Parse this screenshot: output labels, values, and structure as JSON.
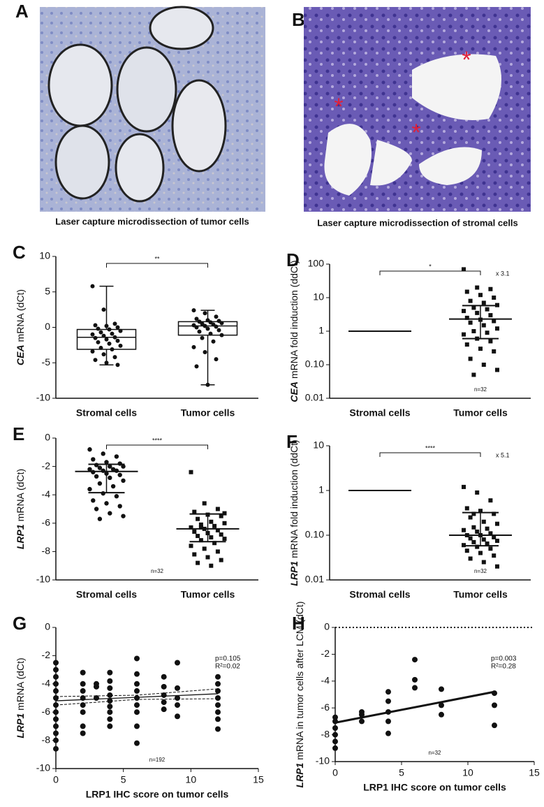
{
  "images": [
    {
      "label": "A",
      "caption": "Laser capture microdissection of tumor cells"
    },
    {
      "label": "B",
      "caption": "Laser capture microdissection of stromal cells"
    }
  ],
  "chart_data": [
    {
      "type": "box",
      "label": "C",
      "ylabel": {
        "gene": "CEA",
        "text": "mRNA (dCt)"
      },
      "categories": [
        "Stromal cells",
        "Tumor cells"
      ],
      "min": [
        -5.3,
        -8.1
      ],
      "q1": [
        -3.1,
        -1.1
      ],
      "median": [
        -1.4,
        0.2
      ],
      "q3": [
        -0.3,
        0.8
      ],
      "max": [
        5.8,
        2.4
      ],
      "points": [
        [
          5.8,
          2.5,
          0.5,
          0.3,
          0.2,
          0,
          -0.2,
          -0.3,
          -0.5,
          -0.7,
          -0.9,
          -1.0,
          -1.2,
          -1.4,
          -1.5,
          -1.7,
          -1.9,
          -2.1,
          -2.3,
          -2.6,
          -2.9,
          -3.1,
          -3.4,
          -3.8,
          -4.2,
          -4.6,
          -5.0,
          -5.3
        ],
        [
          2.4,
          2.0,
          1.5,
          1.2,
          1.0,
          0.9,
          0.8,
          0.7,
          0.6,
          0.5,
          0.4,
          0.3,
          0.2,
          0.1,
          0,
          -0.2,
          -0.4,
          -0.6,
          -0.9,
          -1.1,
          -1.5,
          -2.0,
          -2.8,
          -3.5,
          -4.5,
          -5.5,
          -8.1
        ]
      ],
      "ylim": [
        -10,
        10
      ],
      "yticks": [
        -10,
        -5,
        0,
        5,
        10
      ],
      "significance": "**"
    },
    {
      "type": "dot",
      "label": "D",
      "ylabel": {
        "gene": "CEA",
        "text": "mRNA fold induction (ddCt)"
      },
      "log": true,
      "categories": [
        "Stromal cells",
        "Tumor cells"
      ],
      "points": [
        [],
        [
          70,
          20,
          18,
          15,
          12,
          10,
          8,
          7,
          6,
          5,
          4.5,
          4,
          3.5,
          3,
          2.5,
          2.2,
          2,
          1.8,
          1.5,
          1.2,
          1,
          0.9,
          0.8,
          0.6,
          0.5,
          0.4,
          0.3,
          0.25,
          0.15,
          0.1,
          0.07,
          0.05
        ]
      ],
      "mean": [
        1,
        2.3
      ],
      "lower": [
        null,
        0.6
      ],
      "upper": [
        null,
        5.8
      ],
      "ylim": [
        0.01,
        100
      ],
      "yticks": [
        0.01,
        {
          "value": 0.1,
          "label": "0.10"
        },
        1,
        10,
        100
      ],
      "significance": "*",
      "fold_label": "x 3.1",
      "n_label": "n=32"
    },
    {
      "type": "dot",
      "label": "E",
      "ylabel": {
        "gene": "LRP1",
        "text": "mRNA (dCt)"
      },
      "categories": [
        "Stromal cells",
        "Tumor cells"
      ],
      "points": [
        [
          -0.8,
          -1.1,
          -1.3,
          -1.5,
          -1.7,
          -1.8,
          -1.9,
          -2.0,
          -2.0,
          -2.1,
          -2.2,
          -2.2,
          -2.3,
          -2.3,
          -2.4,
          -2.5,
          -2.6,
          -2.7,
          -2.8,
          -3.0,
          -3.2,
          -3.4,
          -3.6,
          -3.9,
          -4.1,
          -4.4,
          -4.6,
          -4.8,
          -5.0,
          -5.3,
          -5.5,
          -5.7
        ],
        [
          -2.4,
          -4.6,
          -5.0,
          -5.2,
          -5.4,
          -5.5,
          -5.7,
          -5.9,
          -6.0,
          -6.1,
          -6.2,
          -6.3,
          -6.4,
          -6.5,
          -6.6,
          -6.7,
          -6.8,
          -6.9,
          -7.0,
          -7.1,
          -7.2,
          -7.4,
          -7.6,
          -7.8,
          -8.0,
          -8.2,
          -8.4,
          -8.6,
          -8.8,
          -9.0,
          -5.3,
          -6.3
        ]
      ],
      "mean": [
        -2.35,
        -6.4
      ],
      "lower": [
        -3.85,
        -7.3
      ],
      "upper": [
        -1.85,
        -5.35
      ],
      "ylim": [
        -10,
        0
      ],
      "yticks": [
        -10,
        -8,
        -6,
        -4,
        -2,
        0
      ],
      "significance": "****",
      "n_label": "n=32"
    },
    {
      "type": "dot",
      "label": "F",
      "ylabel": {
        "gene": "LRP1",
        "text": "mRNA fold induction (ddCt)"
      },
      "log": true,
      "categories": [
        "Stromal cells",
        "Tumor cells"
      ],
      "points": [
        [],
        [
          1.2,
          0.9,
          0.6,
          0.4,
          0.35,
          0.3,
          0.25,
          0.2,
          0.18,
          0.15,
          0.14,
          0.13,
          0.12,
          0.11,
          0.1,
          0.1,
          0.09,
          0.085,
          0.08,
          0.075,
          0.07,
          0.065,
          0.06,
          0.055,
          0.05,
          0.045,
          0.04,
          0.035,
          0.03,
          0.025,
          0.02,
          0.3
        ]
      ],
      "mean": [
        1,
        0.1
      ],
      "lower": [
        null,
        0.058
      ],
      "upper": [
        null,
        0.32
      ],
      "ylim": [
        0.01,
        10
      ],
      "yticks": [
        0.01,
        {
          "value": 0.1,
          "label": "0.10"
        },
        1,
        10
      ],
      "significance": "****",
      "fold_label": "x 5.1",
      "n_label": "n=32"
    },
    {
      "type": "scatter",
      "label": "G",
      "ylabel": {
        "gene": "LRP1",
        "text": "mRNA (dCt)"
      },
      "xlabel": "LRP1 IHC score on tumor cells",
      "x": [
        0,
        0,
        0,
        0,
        0,
        0,
        0,
        0,
        0,
        0,
        0,
        0,
        0,
        2,
        2,
        2,
        2,
        2,
        2,
        2,
        2,
        3,
        3,
        3,
        4,
        4,
        4,
        4,
        4,
        4,
        4,
        4,
        4,
        6,
        6,
        6,
        6,
        6,
        6,
        6,
        6,
        6,
        8,
        8,
        8,
        8,
        8,
        9,
        9,
        9,
        9,
        9,
        12,
        12,
        12,
        12,
        12,
        12,
        12,
        12
      ],
      "y": [
        -2.5,
        -3,
        -3.5,
        -4,
        -4.5,
        -5,
        -5.5,
        -6,
        -6.5,
        -7,
        -7.5,
        -8,
        -8.6,
        -3.2,
        -4,
        -4.5,
        -5,
        -5.5,
        -6,
        -7,
        -7.5,
        -4,
        -4.2,
        -5,
        -3.2,
        -3.8,
        -4.3,
        -4.8,
        -5.2,
        -5.6,
        -6,
        -6.5,
        -7,
        -2.2,
        -3.3,
        -4,
        -4.5,
        -5,
        -5.5,
        -6,
        -7,
        -8.2,
        -3.5,
        -4.2,
        -4.8,
        -5.3,
        -5.8,
        -2.5,
        -4.3,
        -5,
        -5.5,
        -6.3,
        -3.5,
        -4,
        -4.5,
        -5,
        -5.5,
        -6,
        -6.5,
        -7.2
      ],
      "fit": {
        "x": [
          0,
          6,
          12
        ],
        "y": [
          -5.2,
          -4.95,
          -4.7
        ],
        "ci_lower": [
          -5.5,
          -5.1,
          -5.05
        ],
        "ci_upper": [
          -4.9,
          -4.8,
          -4.35
        ]
      },
      "xlim": [
        0,
        15
      ],
      "xticks": [
        0,
        5,
        10,
        15
      ],
      "ylim": [
        -10,
        0
      ],
      "yticks": [
        -10,
        -8,
        -6,
        -4,
        -2,
        0
      ],
      "stats": [
        "p=0.105",
        "R²=0.02"
      ],
      "n_label": "n=192"
    },
    {
      "type": "scatter",
      "label": "H",
      "ylabel": {
        "gene": "LRP1",
        "text": "mRNA in tumor cells after LCM (dCt)"
      },
      "xlabel": "LRP1 IHC score on tumor cells",
      "x": [
        0,
        0,
        0,
        0,
        0,
        0,
        2,
        2,
        2,
        4,
        4,
        4,
        4,
        4,
        6,
        6,
        6,
        8,
        8,
        8,
        12,
        12,
        12
      ],
      "y": [
        -6.7,
        -7,
        -7.5,
        -8,
        -8.5,
        -9,
        -6.3,
        -6.5,
        -7,
        -4.8,
        -5.5,
        -6.3,
        -7,
        -7.9,
        -2.4,
        -3.9,
        -4.5,
        -4.6,
        -5.8,
        -6.5,
        -4.9,
        -5.8,
        -7.3
      ],
      "fit": {
        "x": [
          0,
          12
        ],
        "y": [
          -7.1,
          -4.8
        ]
      },
      "reference_line": 0,
      "xlim": [
        0,
        15
      ],
      "xticks": [
        0,
        5,
        10,
        15
      ],
      "ylim": [
        -10,
        0
      ],
      "yticks": [
        -10,
        -8,
        -6,
        -4,
        -2,
        0
      ],
      "stats": [
        "p=0.003",
        "R²=0.28"
      ],
      "n_label": "n=32"
    }
  ]
}
